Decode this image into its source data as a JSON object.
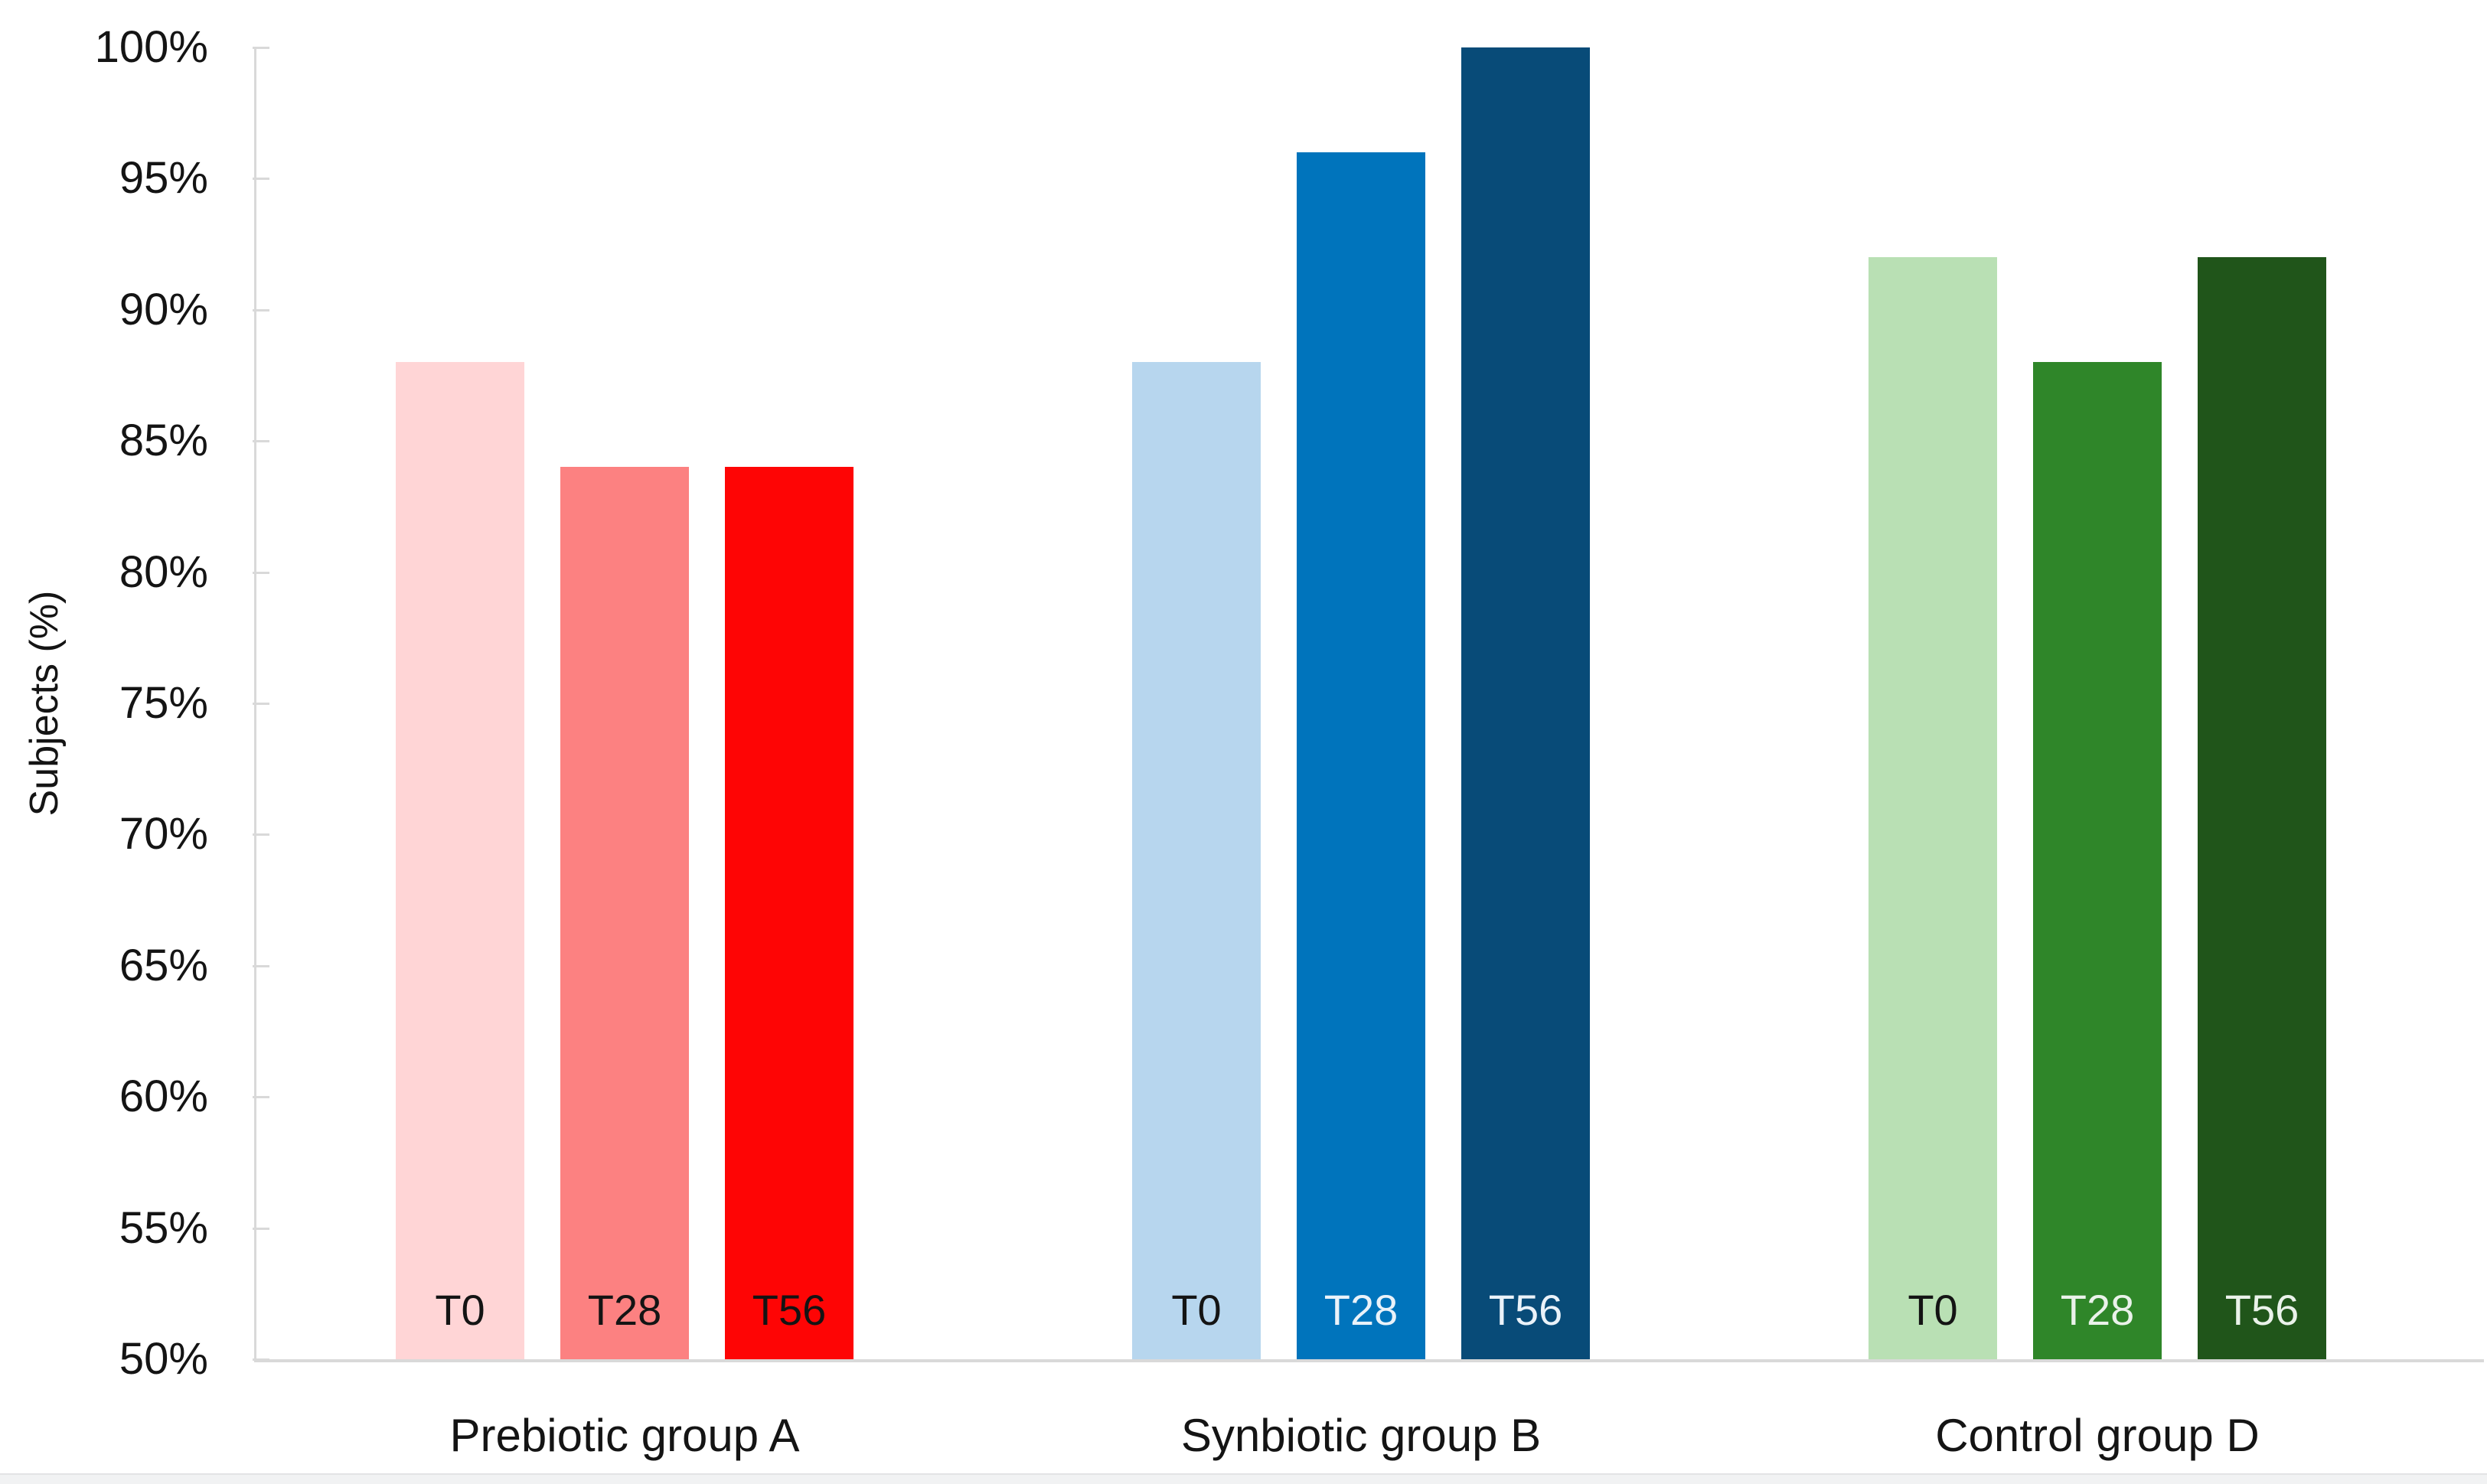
{
  "chart_data": {
    "type": "bar",
    "title": "",
    "ylabel": "Subjects (%)",
    "xlabel": "",
    "ylim": [
      50,
      100
    ],
    "y_ticks": [
      {
        "value": 100,
        "label": "100%"
      },
      {
        "value": 95,
        "label": "95%"
      },
      {
        "value": 90,
        "label": "90%"
      },
      {
        "value": 85,
        "label": "85%"
      },
      {
        "value": 80,
        "label": "80%"
      },
      {
        "value": 75,
        "label": "75%"
      },
      {
        "value": 70,
        "label": "70%"
      },
      {
        "value": 65,
        "label": "65%"
      },
      {
        "value": 60,
        "label": "60%"
      },
      {
        "value": 55,
        "label": "55%"
      },
      {
        "value": 50,
        "label": "50%"
      }
    ],
    "grid": false,
    "legend": false,
    "axis_color": "#d9d9d9",
    "groups": [
      {
        "label": "Prebiotic group A",
        "bars": [
          {
            "time": "T0",
            "value": 88,
            "color": "#ffd5d6",
            "label_color": "#141414"
          },
          {
            "time": "T28",
            "value": 84,
            "color": "#fc8181",
            "label_color": "#141414"
          },
          {
            "time": "T56",
            "value": 84,
            "color": "#fe0505",
            "label_color": "#141414"
          }
        ]
      },
      {
        "label": "Synbiotic group B",
        "bars": [
          {
            "time": "T0",
            "value": 88,
            "color": "#b7d6ee",
            "label_color": "#141414"
          },
          {
            "time": "T28",
            "value": 96,
            "color": "#0074bc",
            "label_color": "#eaf2f9"
          },
          {
            "time": "T56",
            "value": 100,
            "color": "#084b78",
            "label_color": "#eaf2f9"
          }
        ]
      },
      {
        "label": "Control group D",
        "bars": [
          {
            "time": "T0",
            "value": 92,
            "color": "#b9e0b4",
            "label_color": "#141414"
          },
          {
            "time": "T28",
            "value": 88,
            "color": "#2f8629",
            "label_color": "#eaf2ea"
          },
          {
            "time": "T56",
            "value": 92,
            "color": "#20551a",
            "label_color": "#eaf2ea"
          }
        ]
      }
    ]
  }
}
